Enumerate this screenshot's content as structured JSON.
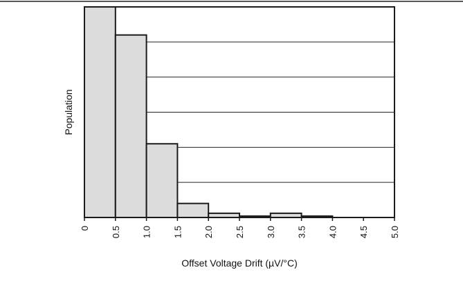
{
  "chart_data": {
    "type": "bar",
    "subtype": "histogram",
    "xlabel": "Offset Voltage Drift (µV/°C)",
    "ylabel": "Population",
    "xlim": [
      0,
      5.0
    ],
    "ylim": [
      0,
      6
    ],
    "x_ticks": [
      "0",
      "0.5",
      "1.0",
      "1.5",
      "2.0",
      "2.5",
      "3.0",
      "3.5",
      "4.0",
      "4.5",
      "5.0"
    ],
    "bins": [
      {
        "start": 0.0,
        "end": 0.5,
        "value": 6.0
      },
      {
        "start": 0.5,
        "end": 1.0,
        "value": 5.2
      },
      {
        "start": 1.0,
        "end": 1.5,
        "value": 2.1
      },
      {
        "start": 1.5,
        "end": 2.0,
        "value": 0.4
      },
      {
        "start": 2.0,
        "end": 2.5,
        "value": 0.12
      },
      {
        "start": 2.5,
        "end": 3.0,
        "value": 0.04
      },
      {
        "start": 3.0,
        "end": 3.5,
        "value": 0.12
      },
      {
        "start": 3.5,
        "end": 4.0,
        "value": 0.04
      }
    ],
    "gridlines_y": [
      1,
      2,
      3,
      4,
      5
    ],
    "grid": "horizontal",
    "colors": {
      "bar_fill": "#dcdcdc",
      "bar_stroke": "#1a1a1a",
      "grid": "#222222"
    }
  }
}
